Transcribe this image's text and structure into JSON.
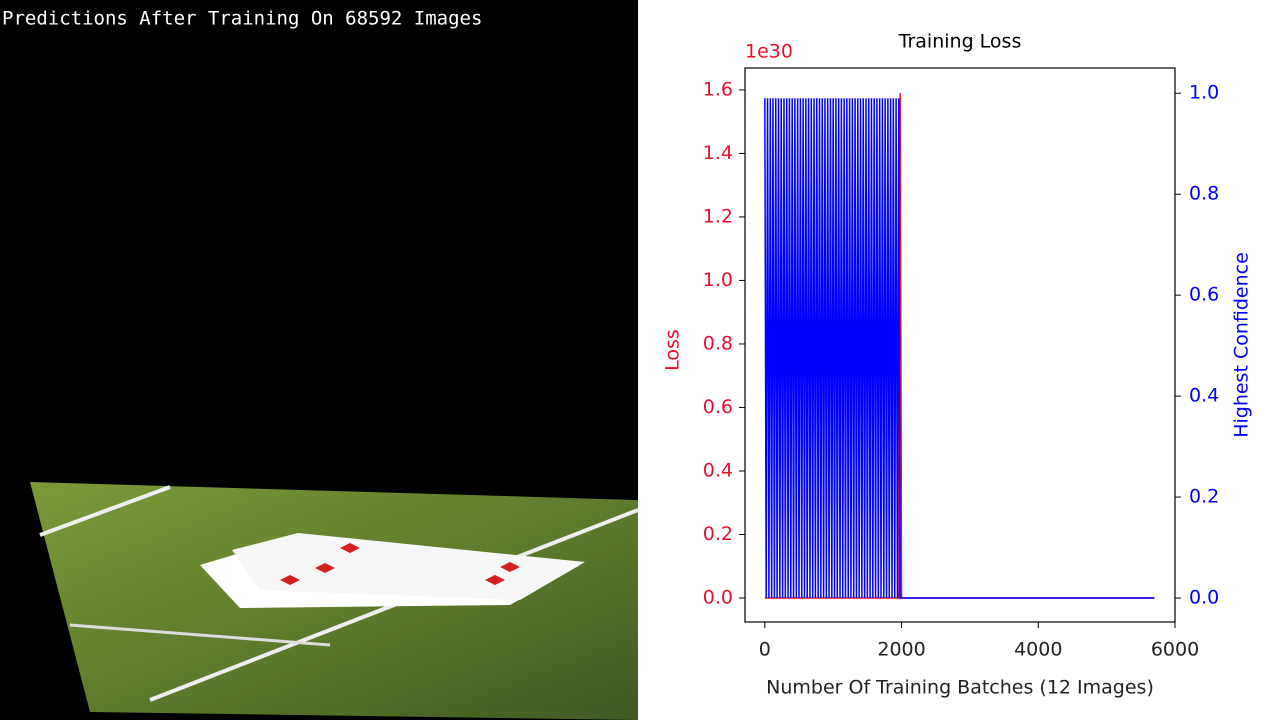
{
  "overlay_text": "Predictions After Training On 68592 Images",
  "chart_data": {
    "type": "line",
    "title": "Training Loss",
    "xlabel": "Number Of Training Batches (12 Images)",
    "ylabel": "Loss",
    "y2label": "Highest Confidence",
    "y_offset_label": "1e30",
    "x": [
      0,
      20,
      40,
      60,
      80,
      100,
      120,
      140,
      160,
      180,
      200,
      220,
      240,
      260,
      280,
      300,
      320,
      340,
      360,
      380,
      400,
      420,
      440,
      460,
      480,
      500,
      520,
      540,
      560,
      580,
      600,
      620,
      640,
      660,
      680,
      700,
      720,
      740,
      760,
      780,
      800,
      820,
      840,
      860,
      880,
      900,
      920,
      940,
      960,
      980,
      1000,
      1020,
      1040,
      1060,
      1080,
      1100,
      1120,
      1140,
      1160,
      1180,
      1200,
      1220,
      1240,
      1260,
      1280,
      1300,
      1320,
      1340,
      1360,
      1380,
      1400,
      1420,
      1440,
      1460,
      1480,
      1500,
      1520,
      1540,
      1560,
      1580,
      1600,
      1620,
      1640,
      1660,
      1680,
      1700,
      1720,
      1740,
      1760,
      1780,
      1800,
      1820,
      1840,
      1860,
      1880,
      1900,
      1920,
      1940,
      1960,
      1980,
      2000,
      5700
    ],
    "series": [
      {
        "name": "Loss",
        "color": "#e8112d",
        "axis": "y",
        "values": [
          0,
          0,
          0,
          0,
          0,
          0,
          0,
          0,
          0,
          0,
          0,
          0,
          0,
          0,
          0,
          0,
          0,
          0,
          0,
          0,
          0,
          0,
          0,
          0,
          0,
          0,
          0,
          0,
          0,
          0,
          0,
          0,
          0,
          0,
          0,
          0,
          0,
          0,
          0,
          0,
          0,
          0,
          0,
          0,
          0,
          0,
          0,
          0,
          0,
          0,
          0,
          0,
          0,
          0,
          0,
          0,
          0,
          0,
          0,
          0,
          0,
          0,
          0,
          0,
          0,
          0,
          0,
          0,
          0,
          0,
          0,
          0,
          0,
          0,
          0,
          0,
          0,
          0,
          0,
          0,
          0,
          0,
          0,
          0,
          0,
          0,
          0,
          0,
          0,
          0,
          0,
          0,
          0,
          0,
          0,
          0,
          0,
          0,
          0,
          1.59,
          0,
          0
        ]
      },
      {
        "name": "Highest Confidence",
        "color": "#0000ff",
        "axis": "y2",
        "values": [
          0.99,
          0,
          0.99,
          0,
          0.99,
          0,
          0.99,
          0,
          0.99,
          0,
          0.99,
          0,
          0.99,
          0,
          0.99,
          0,
          0.99,
          0,
          0.99,
          0,
          0.99,
          0,
          0.99,
          0,
          0.99,
          0,
          0.99,
          0,
          0.99,
          0,
          0.99,
          0,
          0.99,
          0,
          0.99,
          0,
          0.99,
          0,
          0.99,
          0,
          0.99,
          0,
          0.99,
          0,
          0.99,
          0,
          0.99,
          0,
          0.99,
          0,
          0.99,
          0,
          0.99,
          0,
          0.99,
          0,
          0.99,
          0,
          0.99,
          0,
          0.99,
          0,
          0.99,
          0,
          0.99,
          0,
          0.99,
          0,
          0.99,
          0,
          0.99,
          0,
          0.99,
          0,
          0.99,
          0,
          0.99,
          0,
          0.99,
          0,
          0.99,
          0,
          0.99,
          0,
          0.99,
          0,
          0.99,
          0,
          0.99,
          0,
          0.99,
          0,
          0.99,
          0,
          0.99,
          0,
          0.99,
          0,
          0.99,
          0,
          0,
          0
        ]
      }
    ],
    "xlim": [
      -290,
      6000
    ],
    "xticks": [
      0,
      2000,
      4000,
      6000
    ],
    "ylim": [
      -0.0756,
      1.669
    ],
    "yticks": [
      0.0,
      0.2,
      0.4,
      0.6,
      0.8,
      1.0,
      1.2,
      1.4,
      1.6
    ],
    "y2lim": [
      -0.0475,
      1.05
    ],
    "y2ticks": [
      0.0,
      0.2,
      0.4,
      0.6,
      0.8,
      1.0
    ]
  }
}
